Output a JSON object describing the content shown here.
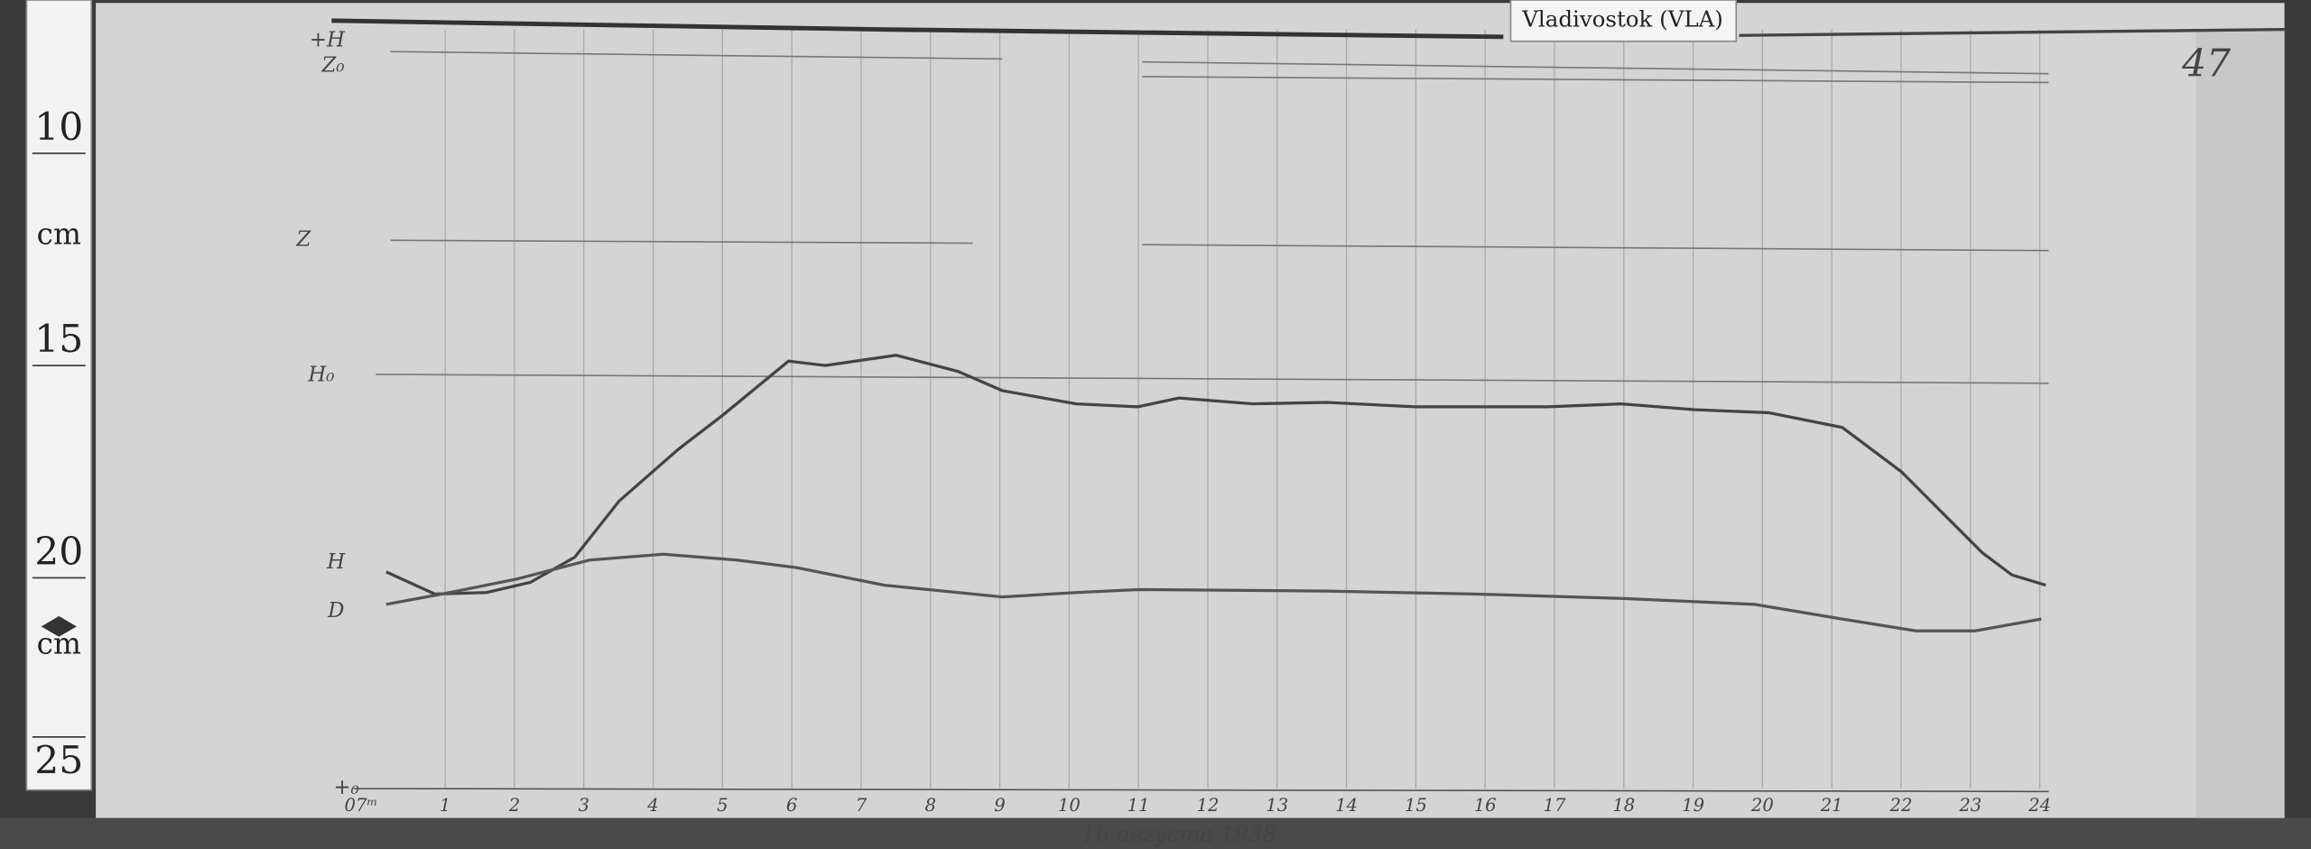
{
  "ruler": {
    "labels": [
      "10",
      "cm",
      "15",
      "20",
      "cm",
      "25"
    ]
  },
  "station_label": "Vladivostok (VLA)",
  "sheet_number": "47",
  "trace_labels": [
    "+H",
    "Z₀",
    "Z",
    "H₀",
    "H",
    "D",
    "+₀"
  ],
  "hour_labels": [
    "07ᵐ",
    "1",
    "2",
    "3",
    "4",
    "5",
    "6",
    "7",
    "8",
    "9",
    "10",
    "11",
    "12",
    "13",
    "14",
    "15",
    "16",
    "17",
    "18",
    "19",
    "20",
    "21",
    "22",
    "23",
    "24"
  ],
  "caption": "16 августа 1938"
}
